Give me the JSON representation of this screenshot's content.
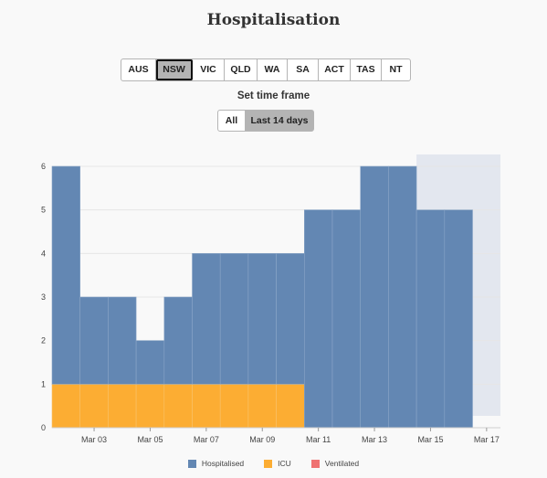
{
  "page": {
    "title": "Hospitalisation"
  },
  "regions": [
    {
      "label": "AUS",
      "active": false
    },
    {
      "label": "NSW",
      "active": true
    },
    {
      "label": "VIC",
      "active": false
    },
    {
      "label": "QLD",
      "active": false
    },
    {
      "label": "WA",
      "active": false
    },
    {
      "label": "SA",
      "active": false
    },
    {
      "label": "ACT",
      "active": false
    },
    {
      "label": "TAS",
      "active": false
    },
    {
      "label": "NT",
      "active": false
    }
  ],
  "timeframe": {
    "label": "Set time frame",
    "options": [
      {
        "label": "All",
        "active": false
      },
      {
        "label": "Last 14 days",
        "active": true
      }
    ]
  },
  "colors": {
    "hospitalised": "#6387b3",
    "icu": "#fcad33",
    "ventilated": "#ef7272",
    "projection_band": "#e3e7ef",
    "axis_text": "#444444"
  },
  "chart_data": {
    "type": "bar",
    "stacked": true,
    "categories": [
      "Mar 02",
      "Mar 03",
      "Mar 04",
      "Mar 05",
      "Mar 06",
      "Mar 07",
      "Mar 08",
      "Mar 09",
      "Mar 10",
      "Mar 11",
      "Mar 12",
      "Mar 13",
      "Mar 14",
      "Mar 15",
      "Mar 16"
    ],
    "series": [
      {
        "name": "Hospitalised",
        "values": [
          5,
          2,
          2,
          1,
          2,
          3,
          3,
          3,
          3,
          5,
          5,
          6,
          6,
          5,
          5
        ]
      },
      {
        "name": "ICU",
        "values": [
          1,
          1,
          1,
          1,
          1,
          1,
          1,
          1,
          1,
          0,
          0,
          0,
          0,
          0,
          0
        ]
      },
      {
        "name": "Ventilated",
        "values": [
          0,
          0,
          0,
          0,
          0,
          0,
          0,
          0,
          0,
          0,
          0,
          0,
          0,
          0,
          0
        ]
      }
    ],
    "x_tick_labels": [
      "Mar 03",
      "Mar 05",
      "Mar 07",
      "Mar 09",
      "Mar 11",
      "Mar 13",
      "Mar 15",
      "Mar 17"
    ],
    "y_ticks": [
      0,
      1,
      2,
      3,
      4,
      5,
      6
    ],
    "ylim": [
      0,
      6
    ],
    "projection_band": {
      "from": "Mar 15",
      "to": "Mar 17"
    },
    "legend_position": "bottom"
  }
}
